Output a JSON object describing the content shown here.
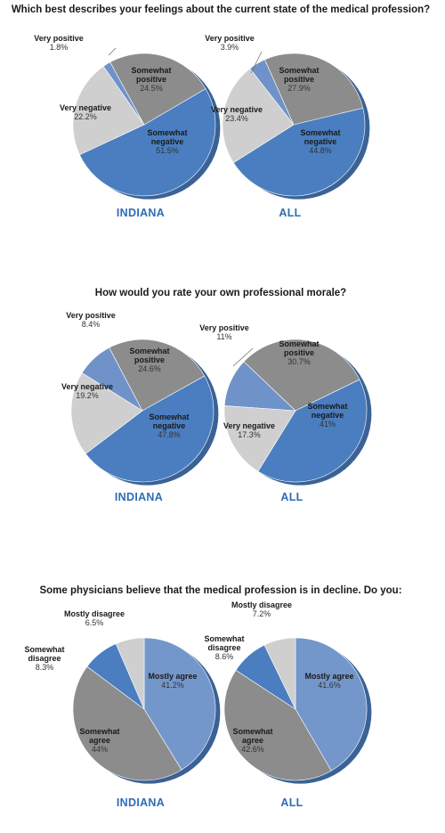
{
  "chart_data": [
    {
      "type": "pie",
      "title": "Which best describes your feelings about the current state of the medical profession?",
      "pies": [
        {
          "region": "INDIANA",
          "slices": [
            {
              "label": "Very positive",
              "value": 1.8,
              "display": "1.8%",
              "color": "#6f92c8"
            },
            {
              "label": "Somewhat positive",
              "value": 24.5,
              "display": "24.5%",
              "color": "#8c8c8c"
            },
            {
              "label": "Somewhat negative",
              "value": 51.5,
              "display": "51.5%",
              "color": "#4a7ec0"
            },
            {
              "label": "Very negative",
              "value": 22.2,
              "display": "22.2%",
              "color": "#cfcfcf"
            }
          ]
        },
        {
          "region": "ALL",
          "slices": [
            {
              "label": "Very positive",
              "value": 3.9,
              "display": "3.9%",
              "color": "#6f92c8"
            },
            {
              "label": "Somewhat positive",
              "value": 27.9,
              "display": "27.9%",
              "color": "#8c8c8c"
            },
            {
              "label": "Somewhat negative",
              "value": 44.8,
              "display": "44.8%",
              "color": "#4a7ec0"
            },
            {
              "label": "Very negative",
              "value": 23.4,
              "display": "23.4%",
              "color": "#cfcfcf"
            }
          ]
        }
      ]
    },
    {
      "type": "pie",
      "title": "How would you rate your own professional morale?",
      "pies": [
        {
          "region": "INDIANA",
          "slices": [
            {
              "label": "Very positive",
              "value": 8.4,
              "display": "8.4%",
              "color": "#6f92c8"
            },
            {
              "label": "Somewhat positive",
              "value": 24.6,
              "display": "24.6%",
              "color": "#8c8c8c"
            },
            {
              "label": "Somewhat negative",
              "value": 47.8,
              "display": "47.8%",
              "color": "#4a7ec0"
            },
            {
              "label": "Very negative",
              "value": 19.2,
              "display": "19.2%",
              "color": "#cfcfcf"
            }
          ]
        },
        {
          "region": "ALL",
          "slices": [
            {
              "label": "Very positive",
              "value": 11,
              "display": "11%",
              "color": "#6f92c8"
            },
            {
              "label": "Somewhat positive",
              "value": 30.7,
              "display": "30.7%",
              "color": "#8c8c8c"
            },
            {
              "label": "Somewhat negative",
              "value": 41,
              "display": "41%",
              "color": "#4a7ec0"
            },
            {
              "label": "Very negative",
              "value": 17.3,
              "display": "17.3%",
              "color": "#cfcfcf"
            }
          ]
        }
      ]
    },
    {
      "type": "pie",
      "title": "Some physicians believe that the medical profession is in decline. Do you:",
      "pies": [
        {
          "region": "INDIANA",
          "slices": [
            {
              "label": "Mostly agree",
              "value": 41.2,
              "display": "41.2%",
              "color": "#7497cb"
            },
            {
              "label": "Somewhat agree",
              "value": 44,
              "display": "44%",
              "color": "#8c8c8c"
            },
            {
              "label": "Somewhat disagree",
              "value": 8.3,
              "display": "8.3%",
              "color": "#4a7ec0"
            },
            {
              "label": "Mostly disagree",
              "value": 6.5,
              "display": "6.5%",
              "color": "#cfcfcf"
            }
          ]
        },
        {
          "region": "ALL",
          "slices": [
            {
              "label": "Mostly agree",
              "value": 41.6,
              "display": "41.6%",
              "color": "#7497cb"
            },
            {
              "label": "Somewhat agree",
              "value": 42.6,
              "display": "42.6%",
              "color": "#8c8c8c"
            },
            {
              "label": "Somewhat disagree",
              "value": 8.6,
              "display": "8.6%",
              "color": "#4a7ec0"
            },
            {
              "label": "Mostly disagree",
              "value": 7.2,
              "display": "7.2%",
              "color": "#cfcfcf"
            }
          ]
        }
      ]
    }
  ]
}
